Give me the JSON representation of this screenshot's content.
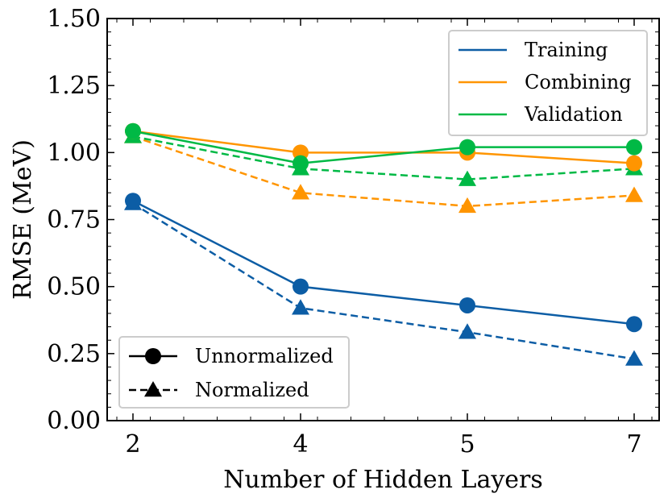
{
  "chart_data": {
    "type": "line",
    "xlabel": "Number of Hidden Layers",
    "ylabel": "RMSE (MeV)",
    "categories": [
      "2",
      "4",
      "5",
      "7"
    ],
    "ylim": [
      0,
      1.5
    ],
    "yticks": [
      "0.00",
      "0.25",
      "0.50",
      "0.75",
      "1.00",
      "1.25",
      "1.50"
    ],
    "series": [
      {
        "name": "Training",
        "variant": "Unnormalized",
        "color": "#0c5da5",
        "marker": "circle",
        "dash": "solid",
        "values": [
          0.82,
          0.5,
          0.43,
          0.36
        ]
      },
      {
        "name": "Training",
        "variant": "Normalized",
        "color": "#0c5da5",
        "marker": "triangle",
        "dash": "dashed",
        "values": [
          0.81,
          0.42,
          0.33,
          0.23
        ]
      },
      {
        "name": "Combining",
        "variant": "Unnormalized",
        "color": "#ff9500",
        "marker": "circle",
        "dash": "solid",
        "values": [
          1.08,
          1.0,
          1.0,
          0.96
        ]
      },
      {
        "name": "Combining",
        "variant": "Normalized",
        "color": "#ff9500",
        "marker": "triangle",
        "dash": "dashed",
        "values": [
          1.06,
          0.85,
          0.8,
          0.84
        ]
      },
      {
        "name": "Validation",
        "variant": "Unnormalized",
        "color": "#00b945",
        "marker": "circle",
        "dash": "solid",
        "values": [
          1.08,
          0.96,
          1.02,
          1.02
        ]
      },
      {
        "name": "Validation",
        "variant": "Normalized",
        "color": "#00b945",
        "marker": "triangle",
        "dash": "dashed",
        "values": [
          1.06,
          0.94,
          0.9,
          0.94
        ]
      }
    ],
    "legend_colors": {
      "position": "top-right",
      "entries": [
        {
          "label": "Training",
          "color": "#0c5da5"
        },
        {
          "label": "Combining",
          "color": "#ff9500"
        },
        {
          "label": "Validation",
          "color": "#00b945"
        }
      ]
    },
    "legend_styles": {
      "position": "bottom-left",
      "entries": [
        {
          "label": "Unnormalized",
          "marker": "circle",
          "dash": "solid"
        },
        {
          "label": "Normalized",
          "marker": "triangle",
          "dash": "dashed"
        }
      ]
    }
  }
}
